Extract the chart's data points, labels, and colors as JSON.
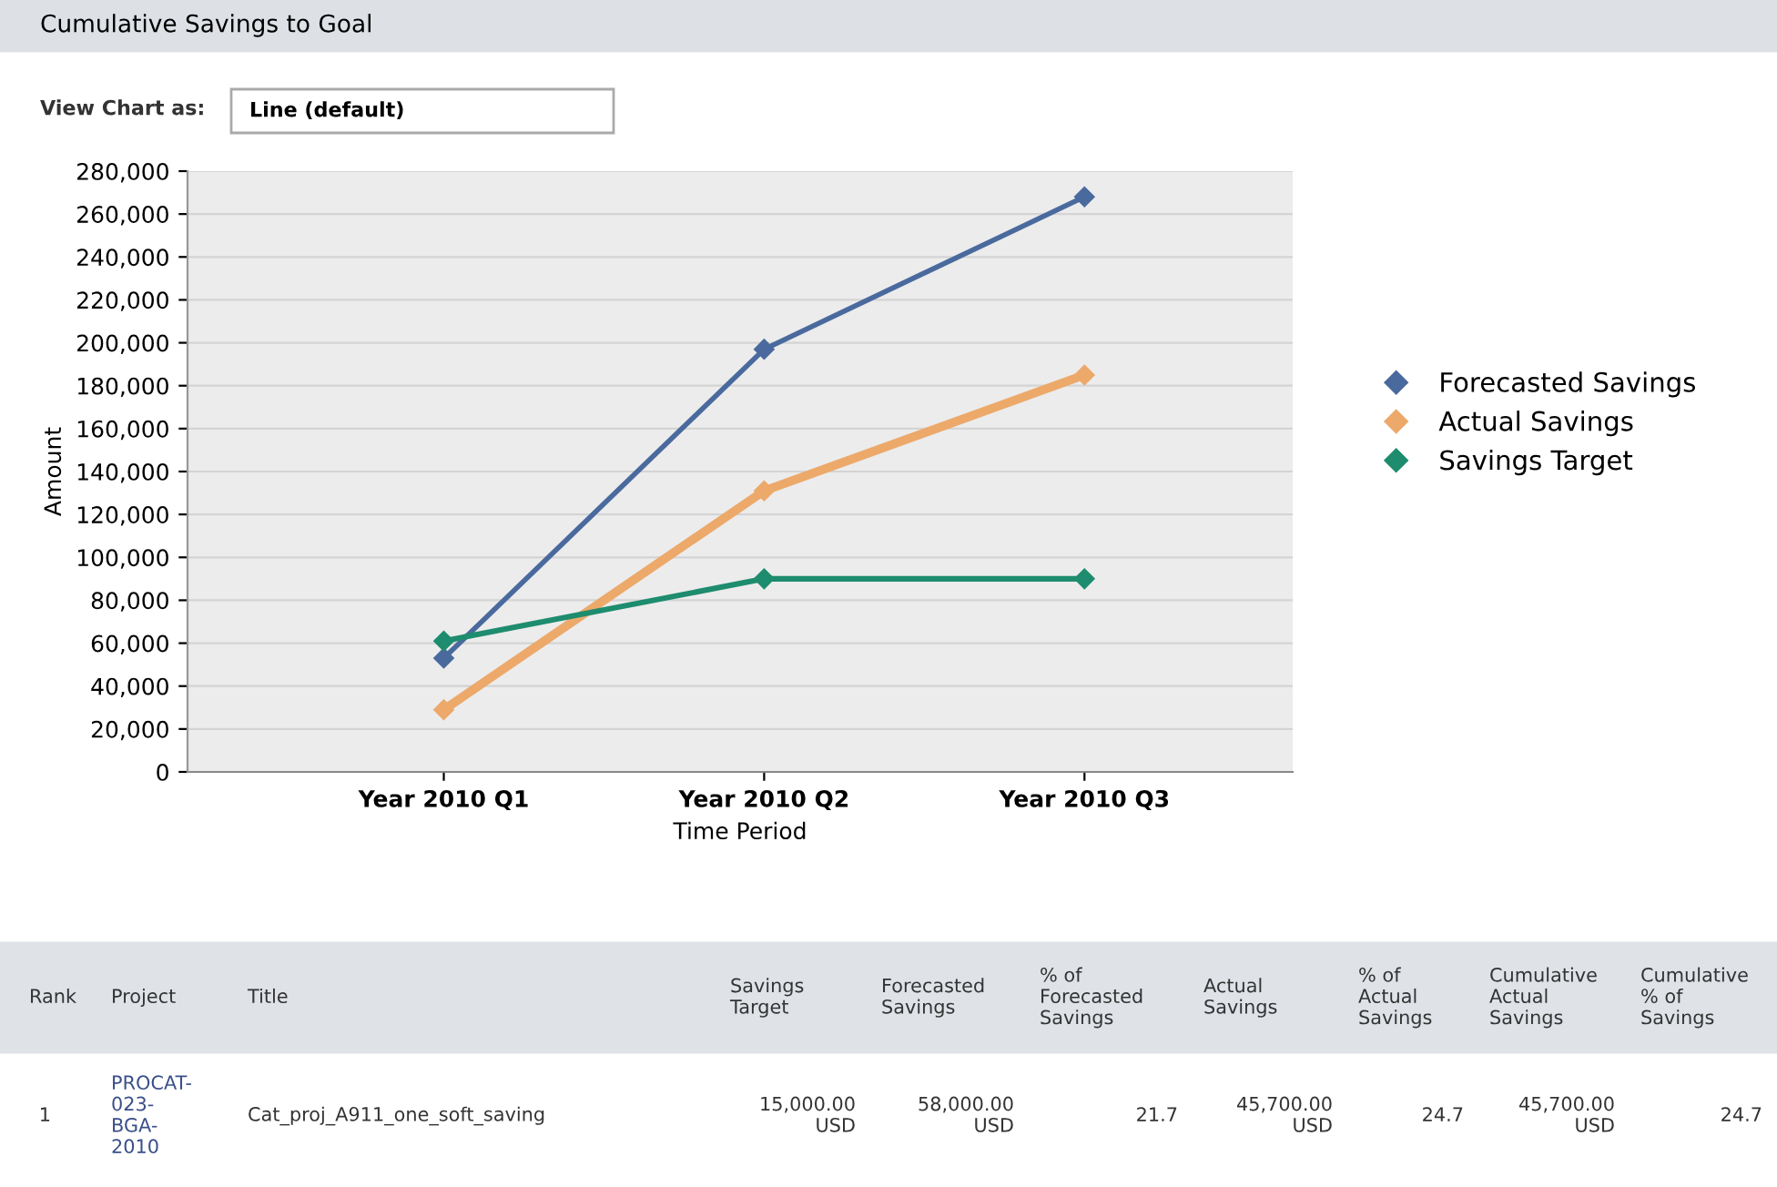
{
  "chart_data": {
    "type": "line",
    "title": "Cumulative Savings to Goal",
    "xlabel": "Time Period",
    "ylabel": "Amount",
    "categories": [
      "Year 2010 Q1",
      "Year 2010 Q2",
      "Year 2010 Q3"
    ],
    "series": [
      {
        "name": "Forecasted Savings",
        "color": "#4a6a9e",
        "values": [
          53000,
          197000,
          268000
        ]
      },
      {
        "name": "Actual Savings",
        "color": "#eca96a",
        "values": [
          29000,
          131000,
          185000
        ]
      },
      {
        "name": "Savings Target",
        "color": "#1e8c6e",
        "values": [
          61000,
          90000,
          90000
        ]
      }
    ],
    "ylim": [
      0,
      280000
    ],
    "yticks": [
      {
        "value": 0,
        "label": "0"
      },
      {
        "value": 20000,
        "label": "20,000"
      },
      {
        "value": 40000,
        "label": "40,000"
      },
      {
        "value": 60000,
        "label": "60,000"
      },
      {
        "value": 80000,
        "label": "80,000"
      },
      {
        "value": 100000,
        "label": "100,000"
      },
      {
        "value": 120000,
        "label": "120,000"
      },
      {
        "value": 140000,
        "label": "140,000"
      },
      {
        "value": 160000,
        "label": "160,000"
      },
      {
        "value": 180000,
        "label": "180,000"
      },
      {
        "value": 200000,
        "label": "200,000"
      },
      {
        "value": 220000,
        "label": "220,000"
      },
      {
        "value": 240000,
        "label": "240,000"
      },
      {
        "value": 260000,
        "label": "260,000"
      },
      {
        "value": 280000,
        "label": "280,000"
      }
    ],
    "grid": "y",
    "legend": "right",
    "marker": "diamond",
    "line_style": "solid",
    "annotations": [
      "View Chart as:",
      "Line (default)",
      "Rank",
      "Project",
      "Title",
      "Savings\nTarget",
      "Forecasted\nSavings",
      "% of\nForecasted\nSavings",
      "Actual\nSavings",
      "% of\nActual\nSavings",
      "Cumulative\nActual\nSavings",
      "Cumulative\n% of\nSavings",
      "1",
      "PROCAT-\n023-\nBGA-\n2010",
      "Cat_proj_A911_one_soft_saving",
      "15,000.00\nUSD",
      "58,000.00\nUSD",
      "21.7",
      "45,700.00\nUSD",
      "24.7",
      "45,700.00\nUSD",
      "24.7"
    ]
  }
}
